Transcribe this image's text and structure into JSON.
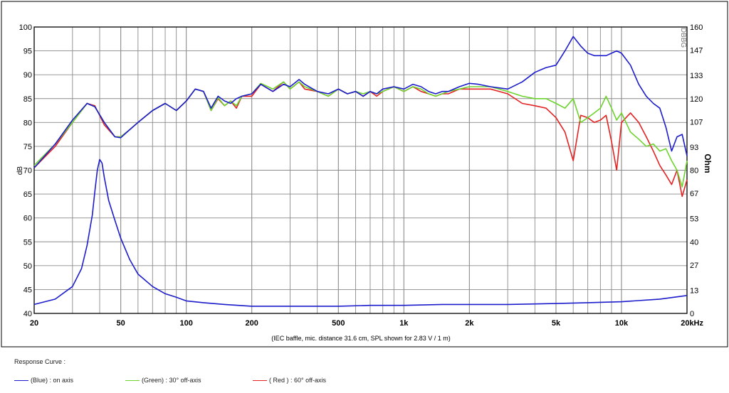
{
  "chart_data": {
    "type": "line",
    "x_scale": "log",
    "xlim": [
      20,
      20000
    ],
    "ylim_left": [
      40,
      100
    ],
    "ylim_right": [
      0,
      160
    ],
    "ylabel_left": "dB",
    "ylabel_right": "Ohm",
    "right_axis_badge": "DBBG",
    "x_ticks": [
      {
        "value": 20,
        "label": "20"
      },
      {
        "value": 50,
        "label": "50"
      },
      {
        "value": 100,
        "label": "100"
      },
      {
        "value": 200,
        "label": "200"
      },
      {
        "value": 500,
        "label": "500"
      },
      {
        "value": 1000,
        "label": "1k"
      },
      {
        "value": 2000,
        "label": "2k"
      },
      {
        "value": 5000,
        "label": "5k"
      },
      {
        "value": 10000,
        "label": "10k"
      },
      {
        "value": 20000,
        "label": "20kHz"
      }
    ],
    "y_ticks_left": [
      100,
      95,
      90,
      85,
      80,
      75,
      70,
      65,
      60,
      55,
      50,
      45,
      40
    ],
    "y_ticks_right": [
      160,
      147,
      133,
      120,
      107,
      93,
      80,
      67,
      53,
      40,
      27,
      13,
      0
    ],
    "grid": true,
    "note": "(IEC baffle, mic. distance 31.6 cm, SPL shown for 2.83 V / 1 m)",
    "series": [
      {
        "name": "(Blue)  : on axis",
        "color": "#1c1ccc",
        "x": [
          20,
          25,
          30,
          35,
          38,
          42,
          47,
          50,
          55,
          60,
          70,
          80,
          90,
          100,
          110,
          120,
          130,
          140,
          150,
          160,
          170,
          180,
          200,
          220,
          250,
          280,
          300,
          330,
          350,
          400,
          450,
          500,
          550,
          600,
          650,
          700,
          750,
          800,
          900,
          1000,
          1100,
          1200,
          1300,
          1400,
          1500,
          1600,
          1800,
          2000,
          2200,
          2500,
          3000,
          3500,
          4000,
          4500,
          5000,
          5500,
          6000,
          6500,
          7000,
          7500,
          8000,
          8500,
          9000,
          9500,
          10000,
          11000,
          12000,
          13000,
          14000,
          15000,
          16000,
          17000,
          18000,
          19000,
          20000
        ],
        "values": [
          70.5,
          75.5,
          80.5,
          84,
          83.3,
          80,
          77,
          76.8,
          78.5,
          80,
          82.5,
          84,
          82.5,
          84.5,
          87,
          86.5,
          83,
          85.5,
          84.5,
          84,
          85,
          85.5,
          86,
          88,
          86.5,
          88,
          87.5,
          89,
          88,
          86.5,
          86,
          87,
          86,
          86.5,
          85.5,
          86.5,
          86,
          87,
          87.5,
          87,
          88,
          87.5,
          86.5,
          86,
          86.5,
          86.5,
          87.5,
          88.2,
          88,
          87.5,
          87,
          88.5,
          90.5,
          91.5,
          92,
          95,
          98,
          96,
          94.5,
          94,
          94,
          94,
          94.5,
          95,
          94.5,
          92,
          88,
          85.5,
          84,
          83,
          79,
          74,
          77,
          77.5,
          73
        ]
      },
      {
        "name": "(Green) : 30° off-axis",
        "color": "#6cd42c",
        "x": [
          20,
          25,
          30,
          35,
          38,
          42,
          47,
          50,
          55,
          60,
          70,
          80,
          90,
          100,
          110,
          120,
          130,
          140,
          150,
          160,
          170,
          180,
          200,
          220,
          250,
          280,
          300,
          330,
          350,
          400,
          450,
          500,
          550,
          600,
          650,
          700,
          750,
          800,
          900,
          1000,
          1100,
          1200,
          1300,
          1400,
          1500,
          1600,
          1800,
          2000,
          2200,
          2500,
          3000,
          3500,
          4000,
          4500,
          5000,
          5500,
          6000,
          6500,
          7000,
          7500,
          8000,
          8500,
          9000,
          9500,
          10000,
          11000,
          12000,
          13000,
          14000,
          15000,
          16000,
          17000,
          18000,
          19000,
          20000
        ],
        "values": [
          71,
          75.5,
          80,
          84,
          83.3,
          80,
          77,
          77,
          78.5,
          80,
          82.5,
          84,
          82.5,
          84.5,
          87,
          86.5,
          82.5,
          85.2,
          83.5,
          84.5,
          83.5,
          85.5,
          86,
          88.2,
          87,
          88.5,
          87,
          88.5,
          87.5,
          86.5,
          85.5,
          87,
          86,
          86.5,
          86,
          86.5,
          86,
          86.5,
          87.5,
          86.5,
          87.5,
          87,
          86,
          85.5,
          86,
          86.5,
          87,
          87.5,
          87.5,
          87.5,
          86.5,
          85.5,
          85,
          85,
          84,
          83,
          85,
          80,
          81,
          82,
          83,
          85.5,
          83,
          80.5,
          82,
          78,
          76.5,
          75,
          75.5,
          74,
          74.5,
          72,
          70,
          66.5,
          72
        ]
      },
      {
        "name": "( Red ) : 60° off-axis",
        "color": "#e42222",
        "x": [
          20,
          25,
          30,
          35,
          38,
          42,
          47,
          50,
          55,
          60,
          70,
          80,
          90,
          100,
          110,
          120,
          130,
          140,
          150,
          160,
          170,
          180,
          200,
          220,
          250,
          280,
          300,
          330,
          350,
          400,
          450,
          500,
          550,
          600,
          650,
          700,
          750,
          800,
          900,
          1000,
          1100,
          1200,
          1300,
          1400,
          1500,
          1600,
          1800,
          2000,
          2200,
          2500,
          3000,
          3500,
          4000,
          4500,
          5000,
          5500,
          6000,
          6500,
          7000,
          7500,
          8000,
          8500,
          9000,
          9500,
          10000,
          11000,
          12000,
          13000,
          14000,
          15000,
          16000,
          17000,
          18000,
          19000,
          20000
        ],
        "values": [
          70.5,
          75,
          80,
          84,
          83.5,
          79.5,
          77,
          77,
          78.5,
          80,
          82.5,
          84,
          82.5,
          84.5,
          87,
          86.5,
          82.5,
          85,
          83.5,
          84.5,
          83,
          85.5,
          85.5,
          88,
          86.5,
          88.5,
          87,
          88.5,
          87,
          86.5,
          85.5,
          87,
          86,
          86.5,
          85.5,
          86.5,
          85.5,
          86.5,
          87.5,
          86.5,
          87.5,
          86.5,
          86,
          85.5,
          86,
          86,
          87,
          87,
          87,
          87,
          86,
          84,
          83.5,
          83,
          81,
          78,
          72,
          81.5,
          81,
          80,
          80.5,
          81.5,
          76,
          70,
          80,
          82,
          80,
          77,
          74,
          71,
          69,
          67,
          70,
          64.5,
          68
        ]
      },
      {
        "name": "impedance",
        "axis": "right",
        "color": "#1c1ccc",
        "x": [
          20,
          25,
          30,
          33,
          35,
          37,
          38,
          39,
          40,
          41,
          42,
          44,
          47,
          50,
          55,
          60,
          70,
          80,
          90,
          100,
          120,
          150,
          200,
          300,
          500,
          700,
          1000,
          1500,
          2000,
          3000,
          5000,
          7000,
          10000,
          15000,
          20000
        ],
        "values": [
          5,
          8,
          15,
          25,
          38,
          55,
          68,
          80,
          86,
          84,
          76,
          63,
          52,
          42,
          30,
          22,
          15,
          11,
          9,
          7,
          6,
          5,
          4,
          4,
          4,
          4.5,
          4.5,
          5,
          5,
          5,
          5.5,
          6,
          6.5,
          8,
          10
        ]
      }
    ]
  },
  "legend": {
    "title": "Response Curve :",
    "items": [
      {
        "label": "(Blue)  : on axis",
        "color": "#1c1ccc"
      },
      {
        "label": "(Green) : 30° off-axis",
        "color": "#6cd42c"
      },
      {
        "label": "( Red ) : 60° off-axis",
        "color": "#e42222"
      }
    ]
  }
}
